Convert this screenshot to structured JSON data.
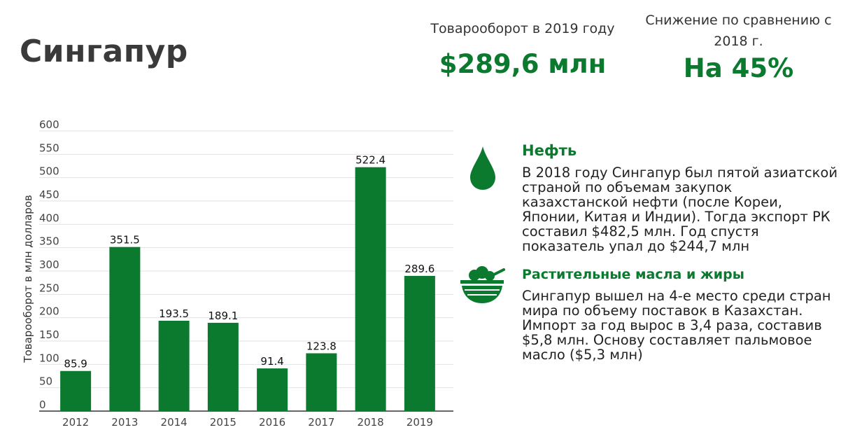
{
  "title": "Сингапур",
  "stats": [
    {
      "label": "Товарооборот в 2019 году",
      "value": "$289,6 млн"
    },
    {
      "label": "Снижение по сравнению с 2018 г.",
      "value": "На 45%"
    }
  ],
  "chart_data": {
    "type": "bar",
    "categories": [
      "2012",
      "2013",
      "2014",
      "2015",
      "2016",
      "2017",
      "2018",
      "2019"
    ],
    "values": [
      85.9,
      351.5,
      193.5,
      189.1,
      91.4,
      123.8,
      522.4,
      289.6
    ],
    "data_labels": [
      "85.9",
      "351.5",
      "193.5",
      "189.1",
      "91.4",
      "123.8",
      "522.4",
      "289.6"
    ],
    "ylabel": "Товарооборот в млн долларов",
    "xlabel": "",
    "ylim": [
      0,
      600
    ],
    "yticks": [
      "0",
      "50",
      "100",
      "150",
      "200",
      "250",
      "300",
      "350",
      "400",
      "450",
      "500",
      "550",
      "600"
    ],
    "grid": true,
    "bar_color": "#0b7a2f"
  },
  "info": [
    {
      "icon": "oil-drop-icon",
      "title": "Нефть",
      "text": "В 2018 году Сингапур был пятой азиатской страной по объемам закупок казахстанской нефти (после Кореи, Японии, Китая и Индии). Тогда экспорт РК составил $482,5 млн. Год спустя показатель упал до $244,7 млн"
    },
    {
      "icon": "salad-bowl-icon",
      "title": "Растительные масла и жиры",
      "text": "Сингапур вышел на 4-е место среди стран мира по объему поставок в Казахстан. Импорт за год вырос в 3,4 раза, составив $5,8 млн. Основу составляет пальмовое масло ($5,3 млн)"
    }
  ],
  "colors": {
    "accent": "#0b7a2f",
    "title": "#3a3a3a"
  }
}
